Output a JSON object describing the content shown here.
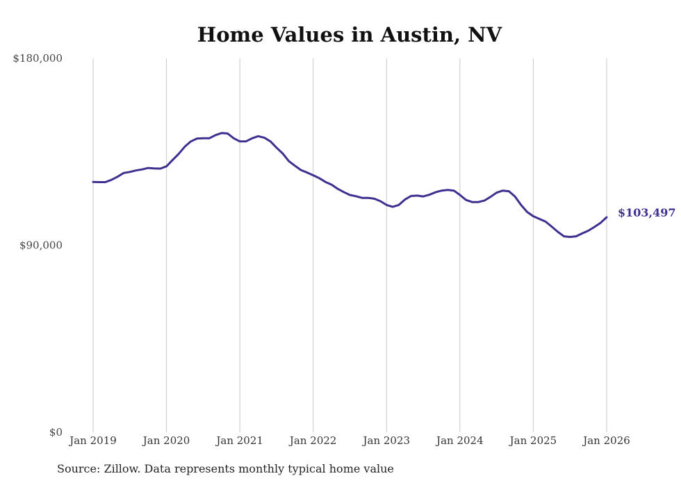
{
  "chart_data": {
    "type": "line",
    "title": "Home Values in Austin, NV",
    "xlabel": "",
    "ylabel": "",
    "ylim": [
      0,
      180000
    ],
    "y_ticks": [
      {
        "value": 0,
        "label": "$0"
      },
      {
        "value": 90000,
        "label": "$90,000"
      },
      {
        "value": 180000,
        "label": "$180,000"
      }
    ],
    "x_ticks": [
      {
        "value": 2019,
        "label": "Jan 2019"
      },
      {
        "value": 2020,
        "label": "Jan 2020"
      },
      {
        "value": 2021,
        "label": "Jan 2021"
      },
      {
        "value": 2022,
        "label": "Jan 2022"
      },
      {
        "value": 2023,
        "label": "Jan 2023"
      },
      {
        "value": 2024,
        "label": "Jan 2024"
      },
      {
        "value": 2025,
        "label": "Jan 2025"
      },
      {
        "value": 2026,
        "label": "Jan 2026"
      }
    ],
    "xlim": [
      2019,
      2026
    ],
    "grid": "vertical",
    "series": [
      {
        "name": "Typical home value",
        "color": "#3d3090",
        "x": [
          2019.0,
          2019.083,
          2019.167,
          2019.25,
          2019.333,
          2019.417,
          2019.5,
          2019.583,
          2019.667,
          2019.75,
          2019.833,
          2019.917,
          2020.0,
          2020.083,
          2020.167,
          2020.25,
          2020.333,
          2020.417,
          2020.5,
          2020.583,
          2020.667,
          2020.75,
          2020.833,
          2020.917,
          2021.0,
          2021.083,
          2021.167,
          2021.25,
          2021.333,
          2021.417,
          2021.5,
          2021.583,
          2021.667,
          2021.75,
          2021.833,
          2021.917,
          2022.0,
          2022.083,
          2022.167,
          2022.25,
          2022.333,
          2022.417,
          2022.5,
          2022.583,
          2022.667,
          2022.75,
          2022.833,
          2022.917,
          2023.0,
          2023.083,
          2023.167,
          2023.25,
          2023.333,
          2023.417,
          2023.5,
          2023.583,
          2023.667,
          2023.75,
          2023.833,
          2023.917,
          2024.0,
          2024.083,
          2024.167,
          2024.25,
          2024.333,
          2024.417,
          2024.5,
          2024.583,
          2024.667,
          2024.75,
          2024.833,
          2024.917,
          2025.0,
          2025.083,
          2025.167,
          2025.25,
          2025.333,
          2025.417,
          2025.5,
          2025.583,
          2025.667,
          2025.75,
          2025.833,
          2025.917,
          2026.0
        ],
        "values": [
          120500,
          120400,
          120400,
          121500,
          123000,
          124800,
          125300,
          126000,
          126500,
          127200,
          127000,
          126900,
          128000,
          131000,
          134000,
          137500,
          140000,
          141400,
          141500,
          141500,
          143000,
          144000,
          143800,
          141500,
          140000,
          140000,
          141500,
          142500,
          141800,
          140000,
          137000,
          134200,
          130500,
          128300,
          126200,
          125000,
          123700,
          122300,
          120500,
          119200,
          117200,
          115600,
          114200,
          113600,
          112800,
          112800,
          112400,
          111200,
          109400,
          108500,
          109400,
          112000,
          113700,
          113900,
          113500,
          114300,
          115500,
          116300,
          116600,
          116300,
          114200,
          111800,
          110800,
          110800,
          111500,
          113300,
          115300,
          116300,
          116000,
          113500,
          109400,
          106000,
          104000,
          102700,
          101400,
          99000,
          96500,
          94300,
          94000,
          94300,
          95700,
          97000,
          98800,
          100800,
          103497
        ]
      }
    ],
    "end_label": "$103,497"
  },
  "source": "Source: Zillow. Data represents monthly typical home value"
}
